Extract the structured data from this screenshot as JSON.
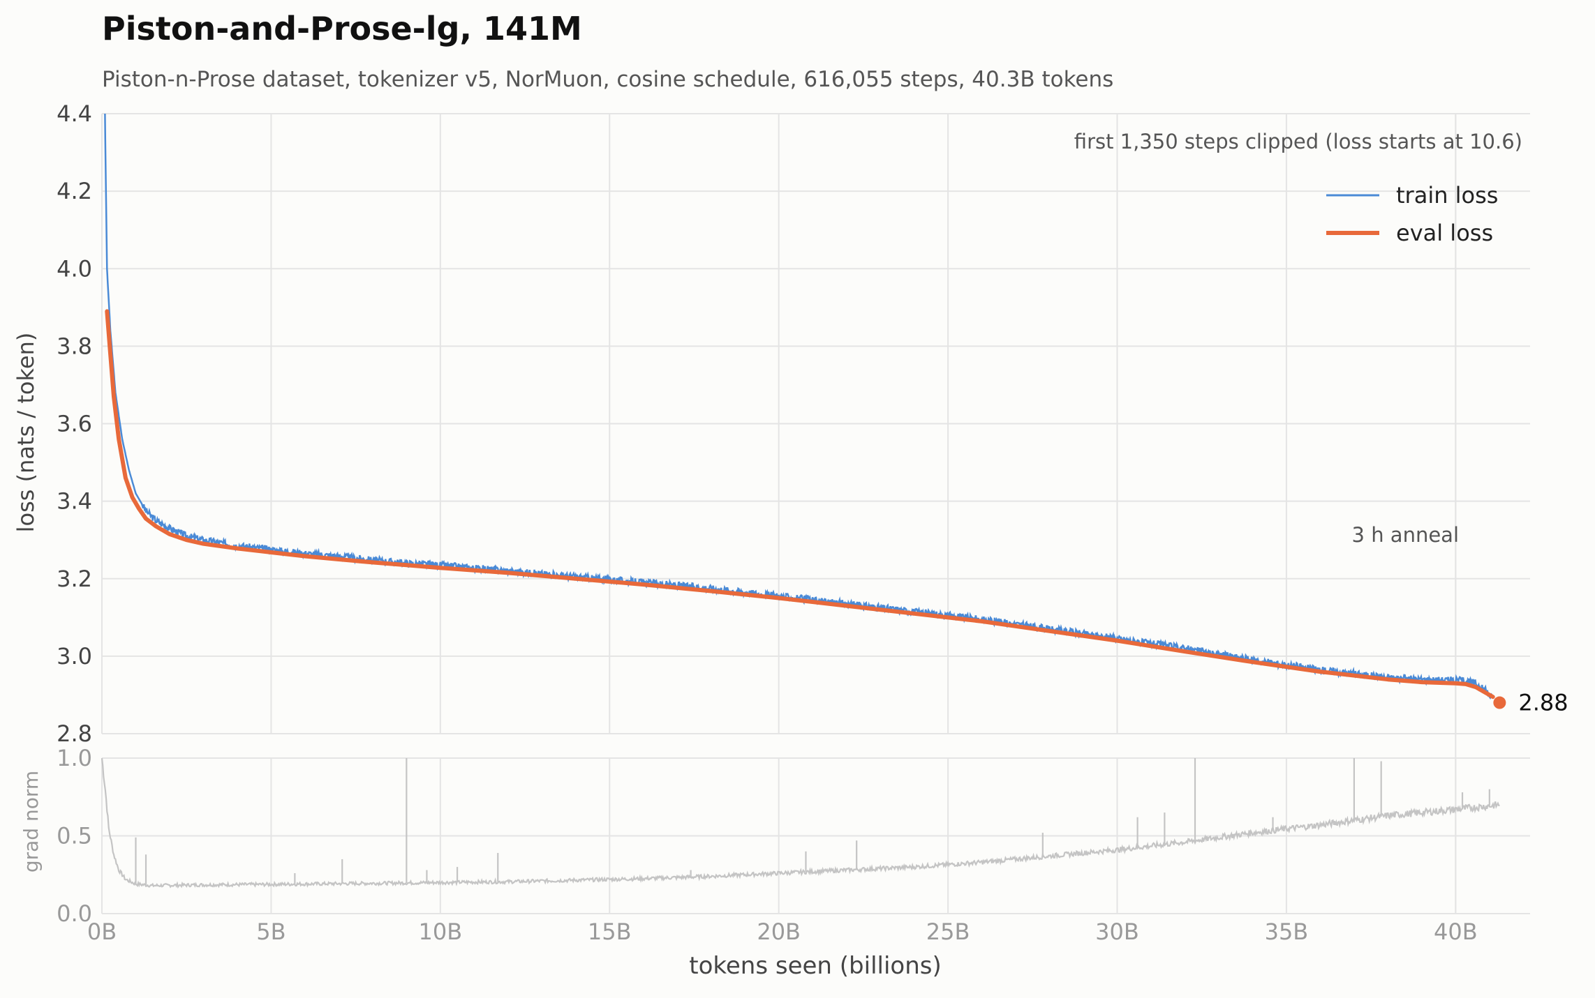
{
  "title": "Piston-and-Prose-lg, 141M",
  "subtitle": "Piston-n-Prose dataset, tokenizer v5, NorMuon, cosine schedule, 616,055 steps, 40.3B tokens",
  "colors": {
    "train": "#4a8ad6",
    "eval": "#e8693a",
    "grad": "#c4c4c4",
    "grid": "#e4e4e4",
    "background": "#fcfcfa"
  },
  "chart_data": [
    {
      "type": "line",
      "ylabel": "loss (nats / token)",
      "xlim": [
        0,
        42.2
      ],
      "ylim": [
        2.8,
        4.4
      ],
      "yticks": [
        2.8,
        3.0,
        3.2,
        3.4,
        3.6,
        3.8,
        4.0,
        4.2,
        4.4
      ],
      "ytick_labels": [
        "2.8",
        "3.0",
        "3.2",
        "3.4",
        "3.6",
        "3.8",
        "4.0",
        "4.2",
        "4.4"
      ],
      "legend_position": "top-right",
      "annotations": {
        "clip_note": "first 1,350 steps clipped (loss starts at 10.6)",
        "anneal_label": "3 h anneal",
        "anneal_start_x": 40.0,
        "final_label": "2.88",
        "final_point": [
          41.3,
          2.88
        ]
      },
      "series": [
        {
          "name": "train loss",
          "x": [
            0.09,
            0.15,
            0.25,
            0.4,
            0.6,
            0.8,
            1.0,
            1.3,
            1.6,
            2.0,
            2.5,
            3.0,
            4.0,
            5.0,
            6.0,
            7.0,
            8.0,
            9.0,
            10.0,
            12.0,
            14.0,
            16.0,
            18.0,
            20.0,
            22.0,
            24.0,
            26.0,
            28.0,
            30.0,
            32.0,
            34.0,
            36.0,
            38.0,
            39.0,
            40.0,
            40.3,
            40.6,
            40.9,
            41.1
          ],
          "y": [
            4.4,
            4.0,
            3.84,
            3.68,
            3.56,
            3.48,
            3.42,
            3.375,
            3.35,
            3.33,
            3.31,
            3.3,
            3.285,
            3.275,
            3.265,
            3.258,
            3.248,
            3.24,
            3.235,
            3.22,
            3.205,
            3.19,
            3.175,
            3.155,
            3.135,
            3.115,
            3.095,
            3.07,
            3.045,
            3.02,
            2.99,
            2.965,
            2.945,
            2.94,
            2.938,
            2.936,
            2.93,
            2.91,
            2.89
          ]
        },
        {
          "name": "eval loss",
          "x": [
            0.15,
            0.25,
            0.35,
            0.5,
            0.7,
            0.9,
            1.1,
            1.3,
            1.6,
            2.0,
            2.5,
            3.0,
            4.0,
            5.0,
            6.0,
            7.0,
            8.0,
            9.0,
            10.0,
            12.0,
            14.0,
            16.0,
            18.0,
            20.0,
            22.0,
            24.0,
            26.0,
            28.0,
            30.0,
            32.0,
            34.0,
            36.0,
            38.0,
            39.0,
            40.0,
            40.3,
            40.6,
            40.9,
            41.1
          ],
          "y": [
            3.89,
            3.78,
            3.67,
            3.56,
            3.46,
            3.41,
            3.38,
            3.355,
            3.335,
            3.315,
            3.3,
            3.29,
            3.278,
            3.268,
            3.258,
            3.25,
            3.242,
            3.235,
            3.228,
            3.215,
            3.2,
            3.185,
            3.168,
            3.15,
            3.13,
            3.11,
            3.09,
            3.065,
            3.04,
            3.012,
            2.985,
            2.96,
            2.94,
            2.933,
            2.93,
            2.928,
            2.92,
            2.905,
            2.895
          ]
        }
      ]
    },
    {
      "type": "line",
      "ylabel": "grad norm",
      "xlabel": "tokens seen (billions)",
      "xlim": [
        0,
        42.2
      ],
      "ylim": [
        0.0,
        1.0
      ],
      "yticks": [
        0.0,
        0.5,
        1.0
      ],
      "ytick_labels": [
        "0.0",
        "0.5",
        "1.0"
      ],
      "xticks": [
        0,
        5,
        10,
        15,
        20,
        25,
        30,
        35,
        40
      ],
      "xtick_labels": [
        "0B",
        "5B",
        "10B",
        "15B",
        "20B",
        "25B",
        "30B",
        "35B",
        "40B"
      ],
      "series": [
        {
          "x": [
            0.0,
            0.1,
            0.2,
            0.35,
            0.5,
            0.7,
            1.0,
            1.5,
            2.0,
            3.0,
            5.0,
            8.0,
            10.0,
            12.0,
            14.0,
            16.0,
            18.0,
            20.0,
            22.0,
            24.0,
            26.0,
            28.0,
            30.0,
            32.0,
            34.0,
            36.0,
            38.0,
            40.0,
            41.3
          ],
          "y": [
            1.0,
            0.8,
            0.55,
            0.38,
            0.28,
            0.22,
            0.19,
            0.18,
            0.182,
            0.185,
            0.188,
            0.195,
            0.2,
            0.205,
            0.215,
            0.225,
            0.24,
            0.26,
            0.28,
            0.3,
            0.33,
            0.37,
            0.41,
            0.46,
            0.52,
            0.57,
            0.63,
            0.67,
            0.7
          ],
          "spikes": [
            [
              1.0,
              0.49
            ],
            [
              1.3,
              0.38
            ],
            [
              5.7,
              0.26
            ],
            [
              7.1,
              0.35
            ],
            [
              9.0,
              1.0
            ],
            [
              9.6,
              0.28
            ],
            [
              10.5,
              0.3
            ],
            [
              11.7,
              0.39
            ],
            [
              17.4,
              0.28
            ],
            [
              20.8,
              0.4
            ],
            [
              22.3,
              0.47
            ],
            [
              27.8,
              0.52
            ],
            [
              30.6,
              0.62
            ],
            [
              31.4,
              0.65
            ],
            [
              32.3,
              1.0
            ],
            [
              34.6,
              0.62
            ],
            [
              37.0,
              1.0
            ],
            [
              37.8,
              0.98
            ],
            [
              40.2,
              0.78
            ],
            [
              41.0,
              0.8
            ]
          ]
        }
      ]
    }
  ]
}
